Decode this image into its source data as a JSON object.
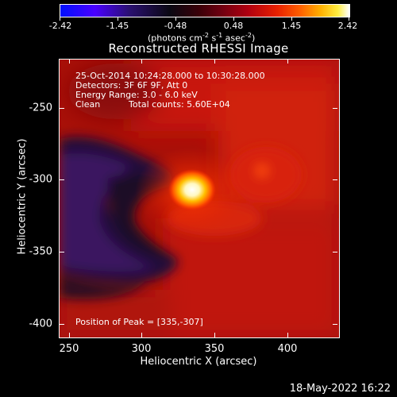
{
  "colorbar": {
    "tick_labels": [
      "-2.42",
      "-1.45",
      "-0.48",
      "0.48",
      "1.45",
      "2.42"
    ],
    "units_prefix": "(photons cm",
    "units_exp1": "-2",
    "units_mid": " s",
    "units_exp2": "-1",
    "units_mid2": " asec",
    "units_exp3": "-2",
    "units_suffix": ")"
  },
  "title": "Reconstructed RHESSI Image",
  "info": {
    "time_range": "25-Oct-2014 10:24:28.000 to 10:30:28.000",
    "detectors": "Detectors: 3F 6F 9F, Att 0",
    "energy_range": "Energy Range: 3.0 - 6.0 keV",
    "algorithm": "Clean",
    "total_counts": "Total counts: 5.60E+04",
    "peak_position": "Position of Peak = [335,-307]"
  },
  "axes": {
    "x_label": "Heliocentric X (arcsec)",
    "y_label": "Heliocentric Y (arcsec)",
    "x_ticks": [
      "250",
      "300",
      "350",
      "400"
    ],
    "y_ticks": [
      "-250",
      "-300",
      "-350",
      "-400"
    ]
  },
  "timestamp": "18-May-2022 16:22",
  "colors": {
    "background": "#000000",
    "foreground": "#ffffff",
    "field": "#a81008",
    "peak": "#fffff0",
    "negative": "#2e1050"
  }
}
